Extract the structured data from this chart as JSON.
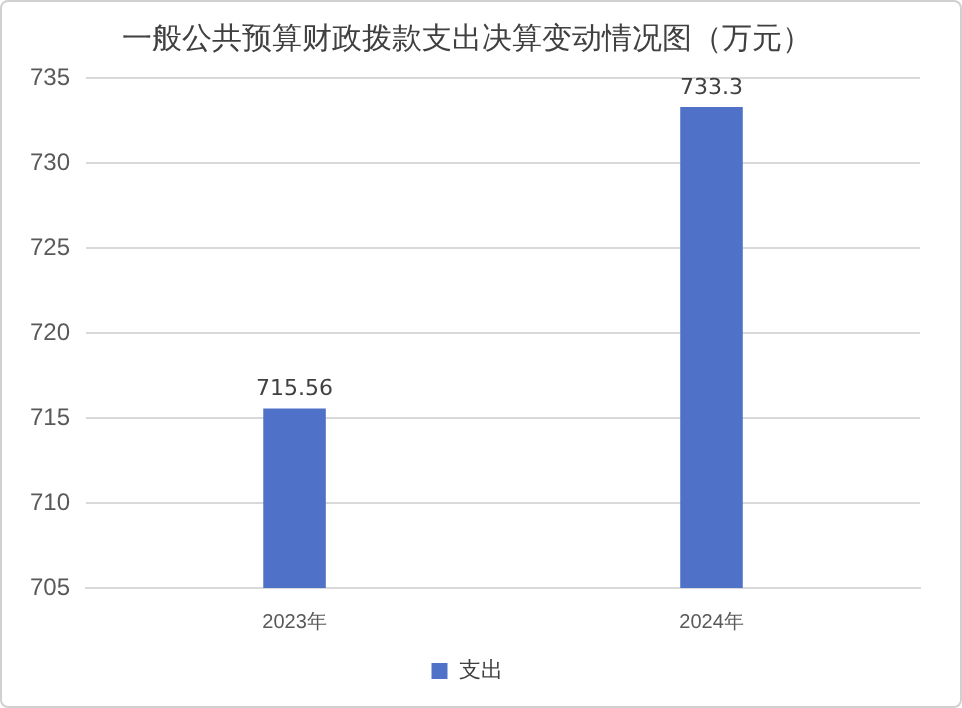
{
  "chart_data": {
    "type": "bar",
    "title": "一般公共预算财政拨款支出决算变动情况图（万元）",
    "categories": [
      "2023年",
      "2024年"
    ],
    "series": [
      {
        "name": "支出",
        "color": "#4f72c8",
        "values": [
          715.56,
          733.3
        ]
      }
    ],
    "ylim": [
      705,
      735
    ],
    "yticks": [
      705,
      710,
      715,
      720,
      725,
      730,
      735
    ],
    "grid": "y",
    "legend": "bottom",
    "data_labels": true
  }
}
